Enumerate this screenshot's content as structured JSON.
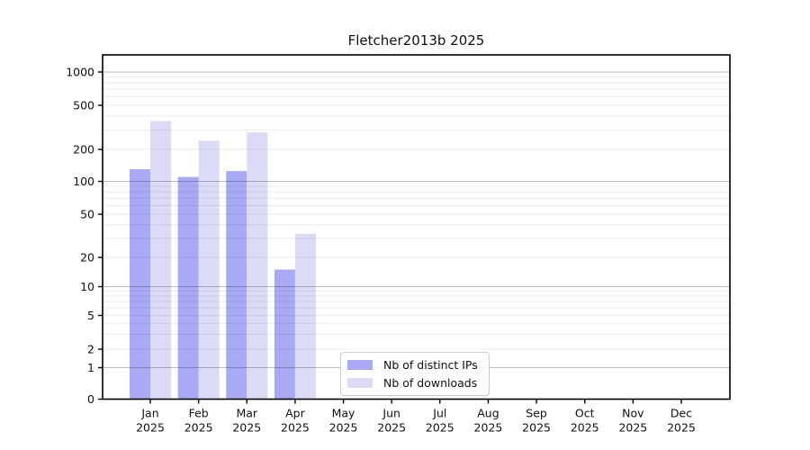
{
  "chart_data": {
    "type": "bar",
    "title": "Fletcher2013b 2025",
    "categories": [
      "Jan",
      "Feb",
      "Mar",
      "Apr",
      "May",
      "Jun",
      "Jul",
      "Aug",
      "Sep",
      "Oct",
      "Nov",
      "Dec"
    ],
    "category_year": "2025",
    "series": [
      {
        "name": "Nb of distinct IPs",
        "color": "#a9a9f5",
        "values": [
          130,
          110,
          125,
          15,
          0,
          0,
          0,
          0,
          0,
          0,
          0,
          0
        ]
      },
      {
        "name": "Nb of downloads",
        "color": "#dbdbf8",
        "values": [
          360,
          240,
          285,
          33,
          0,
          0,
          0,
          0,
          0,
          0,
          0,
          0
        ]
      }
    ],
    "xlabel": "",
    "ylabel": "",
    "yscale": "log-like (compressed below 2, linear 0-1)",
    "y_tick_labels": [
      0,
      1,
      2,
      5,
      10,
      20,
      50,
      100,
      200,
      500,
      1000
    ],
    "ylim": [
      0,
      1450
    ],
    "grid": "on (major lines at powers of 10, faint minor lines at 2-9 multiples)",
    "legend_position": "lower center inside plot",
    "colors": {
      "spine": "#000000",
      "text": "#111111",
      "major_grid": "rgba(0,0,0,0.26)",
      "minor_grid": "rgba(0,0,0,0.08)"
    }
  }
}
